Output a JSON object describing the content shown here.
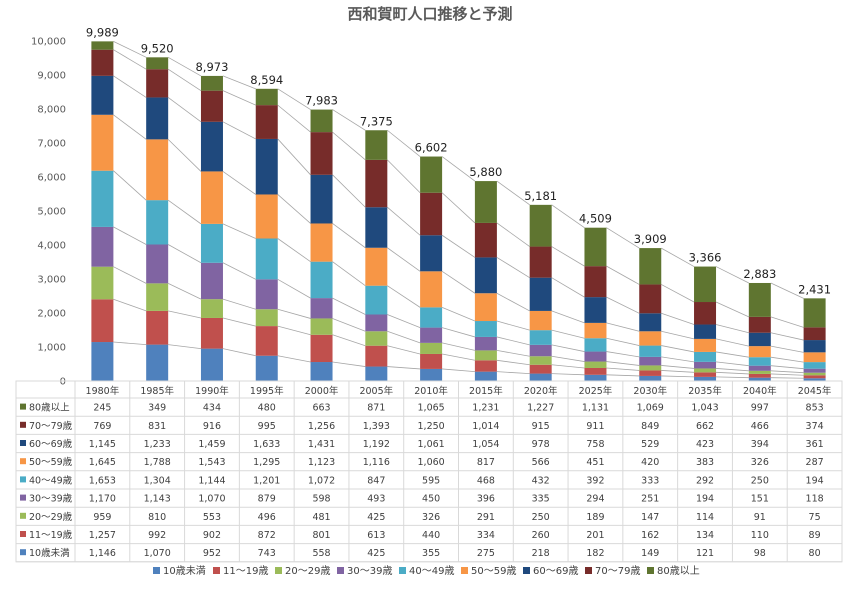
{
  "chart_data": {
    "type": "bar",
    "stacked": true,
    "title": "西和賀町人口推移と予測",
    "ylim": [
      0,
      10000
    ],
    "yticks": [
      "0",
      "1,000",
      "2,000",
      "3,000",
      "4,000",
      "5,000",
      "6,000",
      "7,000",
      "8,000",
      "9,000",
      "10,000"
    ],
    "grid": false,
    "legend_position": "bottom",
    "categories": [
      "1980年",
      "1985年",
      "1990年",
      "1995年",
      "2000年",
      "2005年",
      "2010年",
      "2015年",
      "2020年",
      "2025年",
      "2030年",
      "2035年",
      "2040年",
      "2045年"
    ],
    "totals": [
      9989,
      9520,
      8973,
      8594,
      7983,
      7375,
      6602,
      5880,
      5181,
      4509,
      3909,
      3366,
      2883,
      2431
    ],
    "totals_labels": [
      "9,989",
      "9,520",
      "8,973",
      "8,594",
      "7,983",
      "7,375",
      "6,602",
      "5,880",
      "5,181",
      "4,509",
      "3,909",
      "3,366",
      "2,883",
      "2,431"
    ],
    "series": [
      {
        "name": "10歳未満",
        "color": "#4f81bd",
        "values": [
          1146,
          1070,
          952,
          743,
          558,
          425,
          355,
          275,
          218,
          182,
          149,
          121,
          98,
          80
        ],
        "labels": [
          "1,146",
          "1,070",
          "952",
          "743",
          "558",
          "425",
          "355",
          "275",
          "218",
          "182",
          "149",
          "121",
          "98",
          "80"
        ]
      },
      {
        "name": "11～19歳",
        "color": "#c0504d",
        "values": [
          1257,
          992,
          902,
          872,
          801,
          613,
          440,
          334,
          260,
          201,
          162,
          134,
          110,
          89
        ],
        "labels": [
          "1,257",
          "992",
          "902",
          "872",
          "801",
          "613",
          "440",
          "334",
          "260",
          "201",
          "162",
          "134",
          "110",
          "89"
        ]
      },
      {
        "name": "20～29歳",
        "color": "#9bbb59",
        "values": [
          959,
          810,
          553,
          496,
          481,
          425,
          326,
          291,
          250,
          189,
          147,
          114,
          91,
          75
        ],
        "labels": [
          "959",
          "810",
          "553",
          "496",
          "481",
          "425",
          "326",
          "291",
          "250",
          "189",
          "147",
          "114",
          "91",
          "75"
        ]
      },
      {
        "name": "30～39歳",
        "color": "#8064a2",
        "values": [
          1170,
          1143,
          1070,
          879,
          598,
          493,
          450,
          396,
          335,
          294,
          251,
          194,
          151,
          118
        ],
        "labels": [
          "1,170",
          "1,143",
          "1,070",
          "879",
          "598",
          "493",
          "450",
          "396",
          "335",
          "294",
          "251",
          "194",
          "151",
          "118"
        ]
      },
      {
        "name": "40～49歳",
        "color": "#4bacc6",
        "values": [
          1653,
          1304,
          1144,
          1201,
          1072,
          847,
          595,
          468,
          432,
          392,
          333,
          292,
          250,
          194
        ],
        "labels": [
          "1,653",
          "1,304",
          "1,144",
          "1,201",
          "1,072",
          "847",
          "595",
          "468",
          "432",
          "392",
          "333",
          "292",
          "250",
          "194"
        ]
      },
      {
        "name": "50～59歳",
        "color": "#f79646",
        "values": [
          1645,
          1788,
          1543,
          1295,
          1123,
          1116,
          1060,
          817,
          566,
          451,
          420,
          383,
          326,
          287
        ],
        "labels": [
          "1,645",
          "1,788",
          "1,543",
          "1,295",
          "1,123",
          "1,116",
          "1,060",
          "817",
          "566",
          "451",
          "420",
          "383",
          "326",
          "287"
        ]
      },
      {
        "name": "60～69歳",
        "color": "#1f497d",
        "values": [
          1145,
          1233,
          1459,
          1633,
          1431,
          1192,
          1061,
          1054,
          978,
          758,
          529,
          423,
          394,
          361
        ],
        "labels": [
          "1,145",
          "1,233",
          "1,459",
          "1,633",
          "1,431",
          "1,192",
          "1,061",
          "1,054",
          "978",
          "758",
          "529",
          "423",
          "394",
          "361"
        ]
      },
      {
        "name": "70～79歳",
        "color": "#772c2a",
        "values": [
          769,
          831,
          916,
          995,
          1256,
          1393,
          1250,
          1014,
          915,
          911,
          849,
          662,
          466,
          374
        ],
        "labels": [
          "769",
          "831",
          "916",
          "995",
          "1,256",
          "1,393",
          "1,250",
          "1,014",
          "915",
          "911",
          "849",
          "662",
          "466",
          "374"
        ]
      },
      {
        "name": "80歳以上",
        "color": "#5f7530",
        "values": [
          245,
          349,
          434,
          480,
          663,
          871,
          1065,
          1231,
          1227,
          1131,
          1069,
          1043,
          997,
          853
        ],
        "labels": [
          "245",
          "349",
          "434",
          "480",
          "663",
          "871",
          "1,065",
          "1,231",
          "1,227",
          "1,131",
          "1,069",
          "1,043",
          "997",
          "853"
        ]
      }
    ]
  }
}
